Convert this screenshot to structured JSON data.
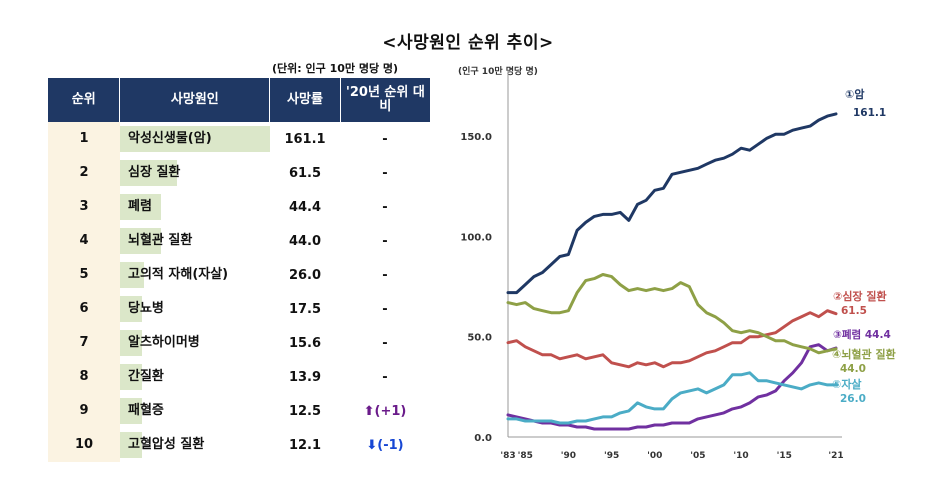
{
  "title": "<사망원인 순위 추이>",
  "unit_note": "(단위: 인구 10만 명당 명)",
  "table": {
    "headers": [
      "순위",
      "사망원인",
      "사망률",
      "'20년 순위 대비"
    ],
    "rows": [
      {
        "rank": "1",
        "cause": "악성신생물(암)",
        "rate": "161.1",
        "value": 161.1,
        "change": "-",
        "dir": "none"
      },
      {
        "rank": "2",
        "cause": "심장 질환",
        "rate": "61.5",
        "value": 61.5,
        "change": "-",
        "dir": "none"
      },
      {
        "rank": "3",
        "cause": "폐렴",
        "rate": "44.4",
        "value": 44.4,
        "change": "-",
        "dir": "none"
      },
      {
        "rank": "4",
        "cause": "뇌혈관 질환",
        "rate": "44.0",
        "value": 44.0,
        "change": "-",
        "dir": "none"
      },
      {
        "rank": "5",
        "cause": "고의적 자해(자살)",
        "rate": "26.0",
        "value": 26.0,
        "change": "-",
        "dir": "none"
      },
      {
        "rank": "6",
        "cause": "당뇨병",
        "rate": "17.5",
        "value": 17.5,
        "change": "-",
        "dir": "none"
      },
      {
        "rank": "7",
        "cause": "알츠하이머병",
        "rate": "15.6",
        "value": 15.6,
        "change": "-",
        "dir": "none"
      },
      {
        "rank": "8",
        "cause": "간질환",
        "rate": "13.9",
        "value": 13.9,
        "change": "-",
        "dir": "none"
      },
      {
        "rank": "9",
        "cause": "패혈증",
        "rate": "12.5",
        "value": 12.5,
        "change": "(+1)",
        "dir": "up"
      },
      {
        "rank": "10",
        "cause": "고혈압성 질환",
        "rate": "12.1",
        "value": 12.1,
        "change": "(-1)",
        "dir": "down"
      }
    ],
    "colors": {
      "header_bg": "#1f3864",
      "bar": "#dbe7c9",
      "rank_bg": "#fbf3e2",
      "up": "#6a1b8a",
      "down": "#1747d4"
    }
  },
  "chart_data": {
    "type": "line",
    "ylabel": "(인구 10만 명당 명)",
    "ylim": [
      0,
      180
    ],
    "yticks": [
      "0.0",
      "50.0",
      "100.0",
      "150.0"
    ],
    "ytick_values": [
      0,
      50,
      100,
      150
    ],
    "xticks": [
      "'83",
      "'85",
      "'90",
      "'95",
      "'00",
      "'05",
      "'10",
      "'15",
      "'21"
    ],
    "xtick_values": [
      1983,
      1985,
      1990,
      1995,
      2000,
      2005,
      2010,
      2015,
      2021
    ],
    "x": [
      1983,
      1984,
      1985,
      1986,
      1987,
      1988,
      1989,
      1990,
      1991,
      1992,
      1993,
      1994,
      1995,
      1996,
      1997,
      1998,
      1999,
      2000,
      2001,
      2002,
      2003,
      2004,
      2005,
      2006,
      2007,
      2008,
      2009,
      2010,
      2011,
      2012,
      2013,
      2014,
      2015,
      2016,
      2017,
      2018,
      2019,
      2020,
      2021
    ],
    "series": [
      {
        "name": "①암",
        "end_label": "161.1",
        "color": "#1f3864",
        "values": [
          72,
          72,
          76,
          80,
          82,
          86,
          90,
          91,
          103,
          107,
          110,
          111,
          111,
          112,
          108,
          116,
          118,
          123,
          124,
          131,
          132,
          133,
          134,
          136,
          138,
          139,
          141,
          144,
          143,
          146,
          149,
          151,
          151,
          153,
          154,
          155,
          158,
          160,
          161.1
        ]
      },
      {
        "name": "②심장 질환",
        "end_label": "61.5",
        "color": "#c0504d",
        "values": [
          47,
          48,
          45,
          43,
          41,
          41,
          39,
          40,
          41,
          39,
          40,
          41,
          37,
          36,
          35,
          37,
          36,
          37,
          35,
          37,
          37,
          38,
          40,
          42,
          43,
          45,
          47,
          47,
          50,
          50,
          51,
          52,
          55,
          58,
          60,
          62,
          60,
          63,
          61.5
        ]
      },
      {
        "name": "③폐렴",
        "end_label": "44.4",
        "color": "#7030a0",
        "values": [
          11,
          10,
          9,
          8,
          7,
          7,
          6,
          6,
          5,
          5,
          4,
          4,
          4,
          4,
          4,
          5,
          5,
          6,
          6,
          7,
          7,
          7,
          9,
          10,
          11,
          12,
          14,
          15,
          17,
          20,
          21,
          23,
          28,
          32,
          37,
          45,
          46,
          43,
          44.4
        ]
      },
      {
        "name": "④뇌혈관 질환",
        "end_label": "44.0",
        "color": "#8ea046",
        "values": [
          67,
          66,
          67,
          64,
          63,
          62,
          62,
          63,
          72,
          78,
          79,
          81,
          80,
          76,
          73,
          74,
          73,
          74,
          73,
          74,
          77,
          75,
          66,
          62,
          60,
          57,
          53,
          52,
          53,
          52,
          50,
          48,
          48,
          46,
          45,
          44,
          42,
          43,
          44.0
        ]
      },
      {
        "name": "⑤자살",
        "end_label": "26.0",
        "color": "#4bacc6",
        "values": [
          9,
          9,
          8,
          8,
          8,
          8,
          7,
          7,
          8,
          8,
          9,
          10,
          10,
          12,
          13,
          17,
          15,
          14,
          14,
          19,
          22,
          23,
          24,
          22,
          24,
          26,
          31,
          31,
          32,
          28,
          28,
          27,
          26,
          25,
          24,
          26,
          27,
          26,
          26.0
        ]
      }
    ]
  }
}
